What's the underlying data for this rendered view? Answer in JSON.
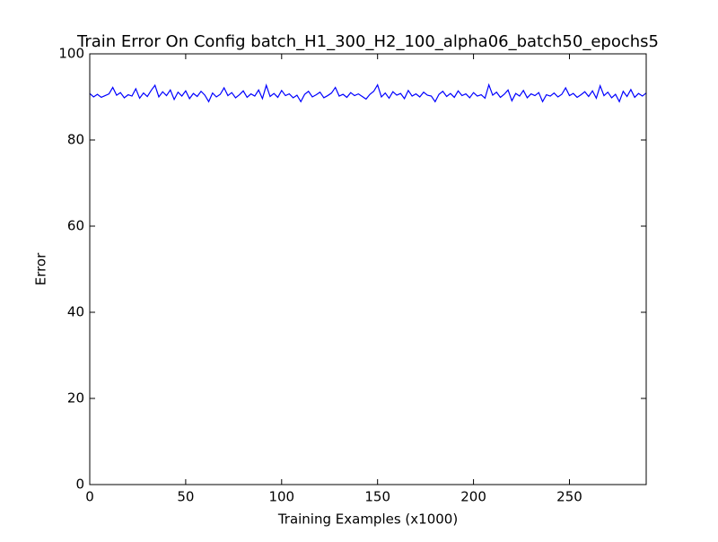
{
  "chart_data": {
    "type": "line",
    "title": "Train Error On Config batch_H1_300_H2_100_alpha06_batch50_epochs5",
    "x_label": "Training Examples (x1000)",
    "y_label": "Error",
    "x": [
      0,
      2,
      4,
      6,
      8,
      10,
      12,
      14,
      16,
      18,
      20,
      22,
      24,
      26,
      28,
      30,
      32,
      34,
      36,
      38,
      40,
      42,
      44,
      46,
      48,
      50,
      52,
      54,
      56,
      58,
      60,
      62,
      64,
      66,
      68,
      70,
      72,
      74,
      76,
      78,
      80,
      82,
      84,
      86,
      88,
      90,
      92,
      94,
      96,
      98,
      100,
      102,
      104,
      106,
      108,
      110,
      112,
      114,
      116,
      118,
      120,
      122,
      124,
      126,
      128,
      130,
      132,
      134,
      136,
      138,
      140,
      142,
      144,
      146,
      148,
      150,
      152,
      154,
      156,
      158,
      160,
      162,
      164,
      166,
      168,
      170,
      172,
      174,
      176,
      178,
      180,
      182,
      184,
      186,
      188,
      190,
      192,
      194,
      196,
      198,
      200,
      202,
      204,
      206,
      208,
      210,
      212,
      214,
      216,
      218,
      220,
      222,
      224,
      226,
      228,
      230,
      232,
      234,
      236,
      238,
      240,
      242,
      244,
      246,
      248,
      250,
      252,
      254,
      256,
      258,
      260,
      262,
      264,
      266,
      268,
      270,
      272,
      274,
      276,
      278,
      280,
      282,
      284,
      286,
      288,
      290
    ],
    "series": [
      {
        "color": "#0000ff",
        "values": [
          90.8,
          90.0,
          90.6,
          89.9,
          90.3,
          90.7,
          92.2,
          90.4,
          91.0,
          89.8,
          90.5,
          90.2,
          91.9,
          89.7,
          90.9,
          90.1,
          91.5,
          92.7,
          90.0,
          91.2,
          90.3,
          91.6,
          89.4,
          91.1,
          90.2,
          91.4,
          89.6,
          90.8,
          90.1,
          91.3,
          90.4,
          88.9,
          90.9,
          90.0,
          90.6,
          92.1,
          90.3,
          91.0,
          89.8,
          90.5,
          91.4,
          89.9,
          90.7,
          90.2,
          91.6,
          89.6,
          92.7,
          90.1,
          90.8,
          89.9,
          91.5,
          90.3,
          90.7,
          89.8,
          90.4,
          88.9,
          90.6,
          91.3,
          90.0,
          90.5,
          91.1,
          89.8,
          90.3,
          90.9,
          92.2,
          90.2,
          90.6,
          89.9,
          91.0,
          90.3,
          90.7,
          90.1,
          89.5,
          90.6,
          91.3,
          92.8,
          90.0,
          90.9,
          89.7,
          91.2,
          90.4,
          90.8,
          89.6,
          91.5,
          90.2,
          90.7,
          90.0,
          91.1,
          90.4,
          90.2,
          88.9,
          90.6,
          91.3,
          90.1,
          90.8,
          89.9,
          91.4,
          90.3,
          90.7,
          89.8,
          91.0,
          90.2,
          90.5,
          89.7,
          92.8,
          90.4,
          91.1,
          89.9,
          90.6,
          91.6,
          89.1,
          90.8,
          90.2,
          91.5,
          89.8,
          90.7,
          90.3,
          91.0,
          88.9,
          90.5,
          90.2,
          90.9,
          90.0,
          90.6,
          92.1,
          90.3,
          90.8,
          89.9,
          90.5,
          91.2,
          90.1,
          91.4,
          89.7,
          92.6,
          90.3,
          91.1,
          89.8,
          90.6,
          88.9,
          91.3,
          90.1,
          91.7,
          89.9,
          90.8,
          90.2,
          90.9
        ]
      }
    ],
    "xlim": [
      0,
      290
    ],
    "ylim": [
      0,
      100
    ],
    "xticks": [
      0,
      50,
      100,
      150,
      200,
      250
    ],
    "yticks": [
      0,
      20,
      40,
      60,
      80,
      100
    ],
    "grid": false
  }
}
